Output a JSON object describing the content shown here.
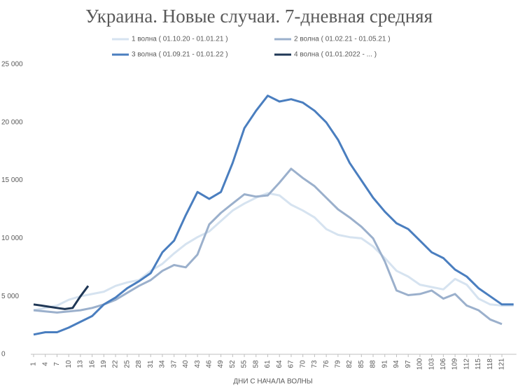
{
  "chart_data": {
    "type": "line",
    "title": "Украина. Новые случаи. 7-дневная средняя",
    "x_label": "ДНИ С НАЧАЛА ВОЛНЫ",
    "x": [
      1,
      4,
      7,
      10,
      13,
      16,
      19,
      22,
      25,
      28,
      31,
      34,
      37,
      40,
      43,
      46,
      49,
      52,
      55,
      58,
      61,
      64,
      67,
      70,
      73,
      76,
      79,
      82,
      85,
      88,
      91,
      94,
      97,
      100,
      103,
      106,
      109,
      112,
      115,
      118,
      121,
      124
    ],
    "series": [
      {
        "name": "1 волна ( 01.10.20 - 01.01.21 )",
        "color": "#d6e3f0",
        "values": [
          3800,
          4000,
          4200,
          4700,
          5000,
          5200,
          5400,
          5900,
          6200,
          6400,
          7200,
          7800,
          8700,
          9500,
          10100,
          10600,
          11500,
          12400,
          13000,
          13500,
          13900,
          13700,
          12900,
          12400,
          11800,
          10800,
          10300,
          10100,
          10000,
          9300,
          8300,
          7200,
          6700,
          6000,
          5800,
          5600,
          6500,
          6000,
          4800,
          4300,
          4200,
          4200
        ]
      },
      {
        "name": "2 волна ( 01.02.21 - 01.05.21 )",
        "color": "#9bb0cc",
        "values": [
          3800,
          3700,
          3600,
          3700,
          3800,
          4000,
          4300,
          4700,
          5300,
          5900,
          6400,
          7200,
          7700,
          7500,
          8600,
          11200,
          12200,
          13000,
          13800,
          13600,
          13700,
          14800,
          16000,
          15200,
          14500,
          13500,
          12500,
          11800,
          11000,
          10000,
          8000,
          5500,
          5100,
          5200,
          5500,
          4800,
          5200,
          4200,
          3800,
          3000,
          2600,
          null
        ]
      },
      {
        "name": "3 волна ( 01.09.21 - 01.01.22 )",
        "color": "#4a7ebf",
        "values": [
          1700,
          1900,
          1900,
          2300,
          2800,
          3300,
          4300,
          4900,
          5700,
          6300,
          7000,
          8800,
          9800,
          12000,
          14000,
          13400,
          14000,
          16500,
          19500,
          21000,
          22300,
          21800,
          22000,
          21700,
          21000,
          20000,
          18500,
          16500,
          15000,
          13500,
          12300,
          11300,
          10800,
          9800,
          8800,
          8300,
          7300,
          6700,
          5700,
          5000,
          4300,
          4300
        ]
      },
      {
        "name": "4 волна ( 01.01.2022 - ... )",
        "color": "#1f3756",
        "x": [
          1,
          3,
          5,
          7,
          9,
          11,
          13,
          15
        ],
        "values": [
          4300,
          4200,
          4100,
          4000,
          3900,
          4000,
          5000,
          5900
        ]
      }
    ],
    "xlim": [
      1,
      124
    ],
    "xticks": [
      1,
      4,
      7,
      10,
      13,
      16,
      19,
      22,
      25,
      28,
      31,
      34,
      37,
      40,
      43,
      46,
      49,
      52,
      55,
      58,
      61,
      64,
      67,
      70,
      73,
      76,
      79,
      82,
      85,
      88,
      91,
      94,
      97,
      100,
      103,
      106,
      109,
      112,
      115,
      118,
      121
    ],
    "ylim": [
      0,
      25000
    ],
    "yticks": [
      0,
      {
        "value": 5000,
        "label": "5 000"
      },
      {
        "value": 10000,
        "label": "10 000"
      },
      {
        "value": 15000,
        "label": "15 000"
      },
      {
        "value": 20000,
        "label": "20 000"
      },
      {
        "value": 25000,
        "label": "25 000"
      }
    ],
    "grid": false
  }
}
